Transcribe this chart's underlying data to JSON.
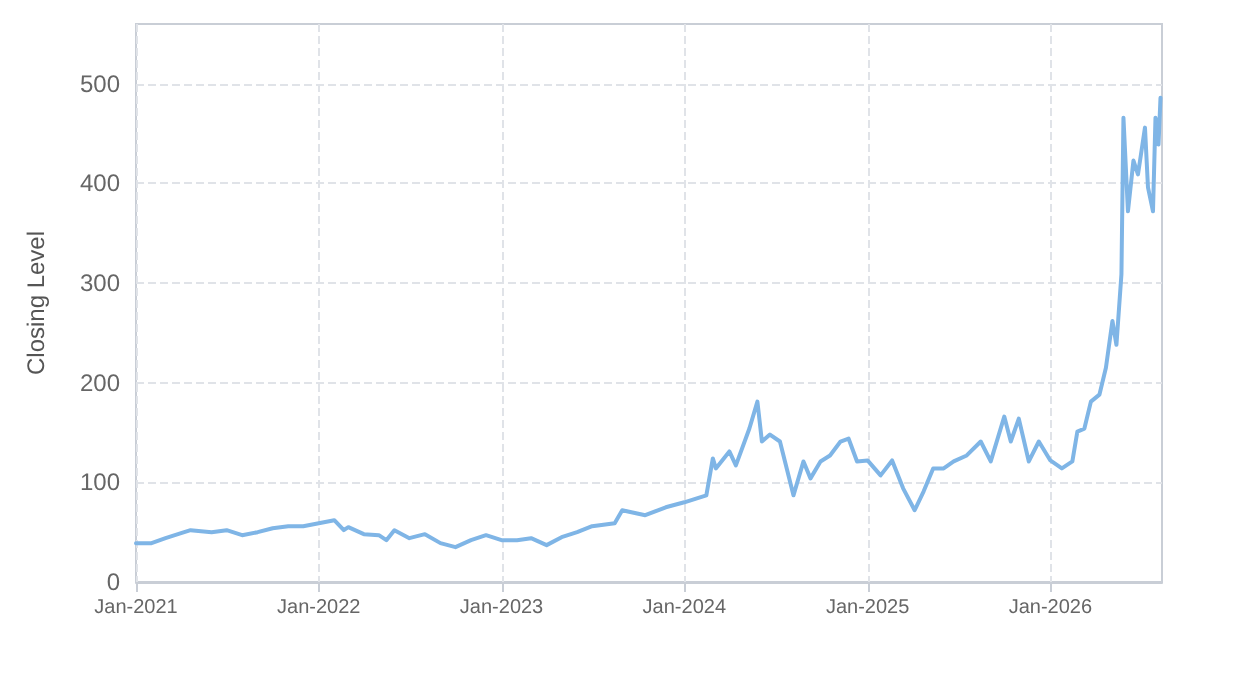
{
  "chart_data": {
    "type": "line",
    "ylabel": "Closing Level",
    "grid": true,
    "marker": "none",
    "line_style": "solid",
    "xlim": [
      "2021-01-01",
      "2026-08-12"
    ],
    "xticks": [
      {
        "value": "2021-01",
        "label": "Jan-2021"
      },
      {
        "value": "2022-01",
        "label": "Jan-2022"
      },
      {
        "value": "2023-01",
        "label": "Jan-2023"
      },
      {
        "value": "2024-01",
        "label": "Jan-2024"
      },
      {
        "value": "2025-01",
        "label": "Jan-2025"
      },
      {
        "value": "2026-01",
        "label": "Jan-2026"
      }
    ],
    "ylim": [
      0,
      560
    ],
    "yticks": [
      0,
      100,
      200,
      300,
      400,
      500
    ],
    "series": [
      {
        "color": "#7fb5e6",
        "x": [
          "2021-01-01",
          "2021-02-01",
          "2021-03-01",
          "2021-04-01",
          "2021-04-20",
          "2021-06-01",
          "2021-07-01",
          "2021-08-01",
          "2021-09-01",
          "2021-10-01",
          "2021-11-01",
          "2021-12-01",
          "2022-01-01",
          "2022-02-01",
          "2022-02-20",
          "2022-03-01",
          "2022-04-01",
          "2022-05-01",
          "2022-05-16",
          "2022-06-01",
          "2022-07-01",
          "2022-08-01",
          "2022-09-01",
          "2022-10-01",
          "2022-11-01",
          "2022-12-01",
          "2023-01-01",
          "2023-02-01",
          "2023-03-01",
          "2023-04-01",
          "2023-05-01",
          "2023-06-01",
          "2023-07-01",
          "2023-08-15",
          "2023-08-30",
          "2023-10-15",
          "2023-11-25",
          "2024-01-01",
          "2024-02-14",
          "2024-02-27",
          "2024-03-04",
          "2024-03-31",
          "2024-04-13",
          "2024-05-10",
          "2024-05-26",
          "2024-06-04",
          "2024-06-20",
          "2024-07-10",
          "2024-08-06",
          "2024-08-26",
          "2024-09-09",
          "2024-09-29",
          "2024-10-18",
          "2024-11-08",
          "2024-11-24",
          "2024-12-11",
          "2025-01-01",
          "2025-01-27",
          "2025-02-19",
          "2025-03-13",
          "2025-04-05",
          "2025-04-23",
          "2025-05-12",
          "2025-06-02",
          "2025-06-22",
          "2025-07-18",
          "2025-08-15",
          "2025-09-04",
          "2025-10-01",
          "2025-10-14",
          "2025-10-30",
          "2025-11-19",
          "2025-12-09",
          "2026-01-01",
          "2026-01-24",
          "2026-02-14",
          "2026-02-24",
          "2026-03-10",
          "2026-03-23",
          "2026-04-09",
          "2026-04-22",
          "2026-05-05",
          "2026-05-13",
          "2026-05-23",
          "2026-05-27",
          "2026-06-05",
          "2026-06-16",
          "2026-06-25",
          "2026-07-09",
          "2026-07-15",
          "2026-07-25",
          "2026-07-30",
          "2026-08-05",
          "2026-08-09"
        ],
        "values": [
          39,
          39,
          44,
          49,
          52,
          50,
          52,
          47,
          50,
          54,
          56,
          56,
          59,
          62,
          52,
          55,
          48,
          47,
          42,
          52,
          44,
          48,
          39,
          35,
          42,
          47,
          42,
          42,
          44,
          37,
          45,
          50,
          56,
          59,
          72,
          67,
          75,
          80,
          87,
          124,
          114,
          131,
          117,
          154,
          181,
          141,
          148,
          141,
          87,
          121,
          104,
          121,
          127,
          141,
          144,
          121,
          122,
          107,
          122,
          94,
          72,
          91,
          114,
          114,
          121,
          127,
          141,
          121,
          166,
          141,
          164,
          121,
          141,
          122,
          114,
          121,
          151,
          154,
          181,
          188,
          215,
          262,
          238,
          309,
          466,
          372,
          423,
          409,
          456,
          396,
          372,
          466,
          439,
          486
        ]
      }
    ]
  }
}
